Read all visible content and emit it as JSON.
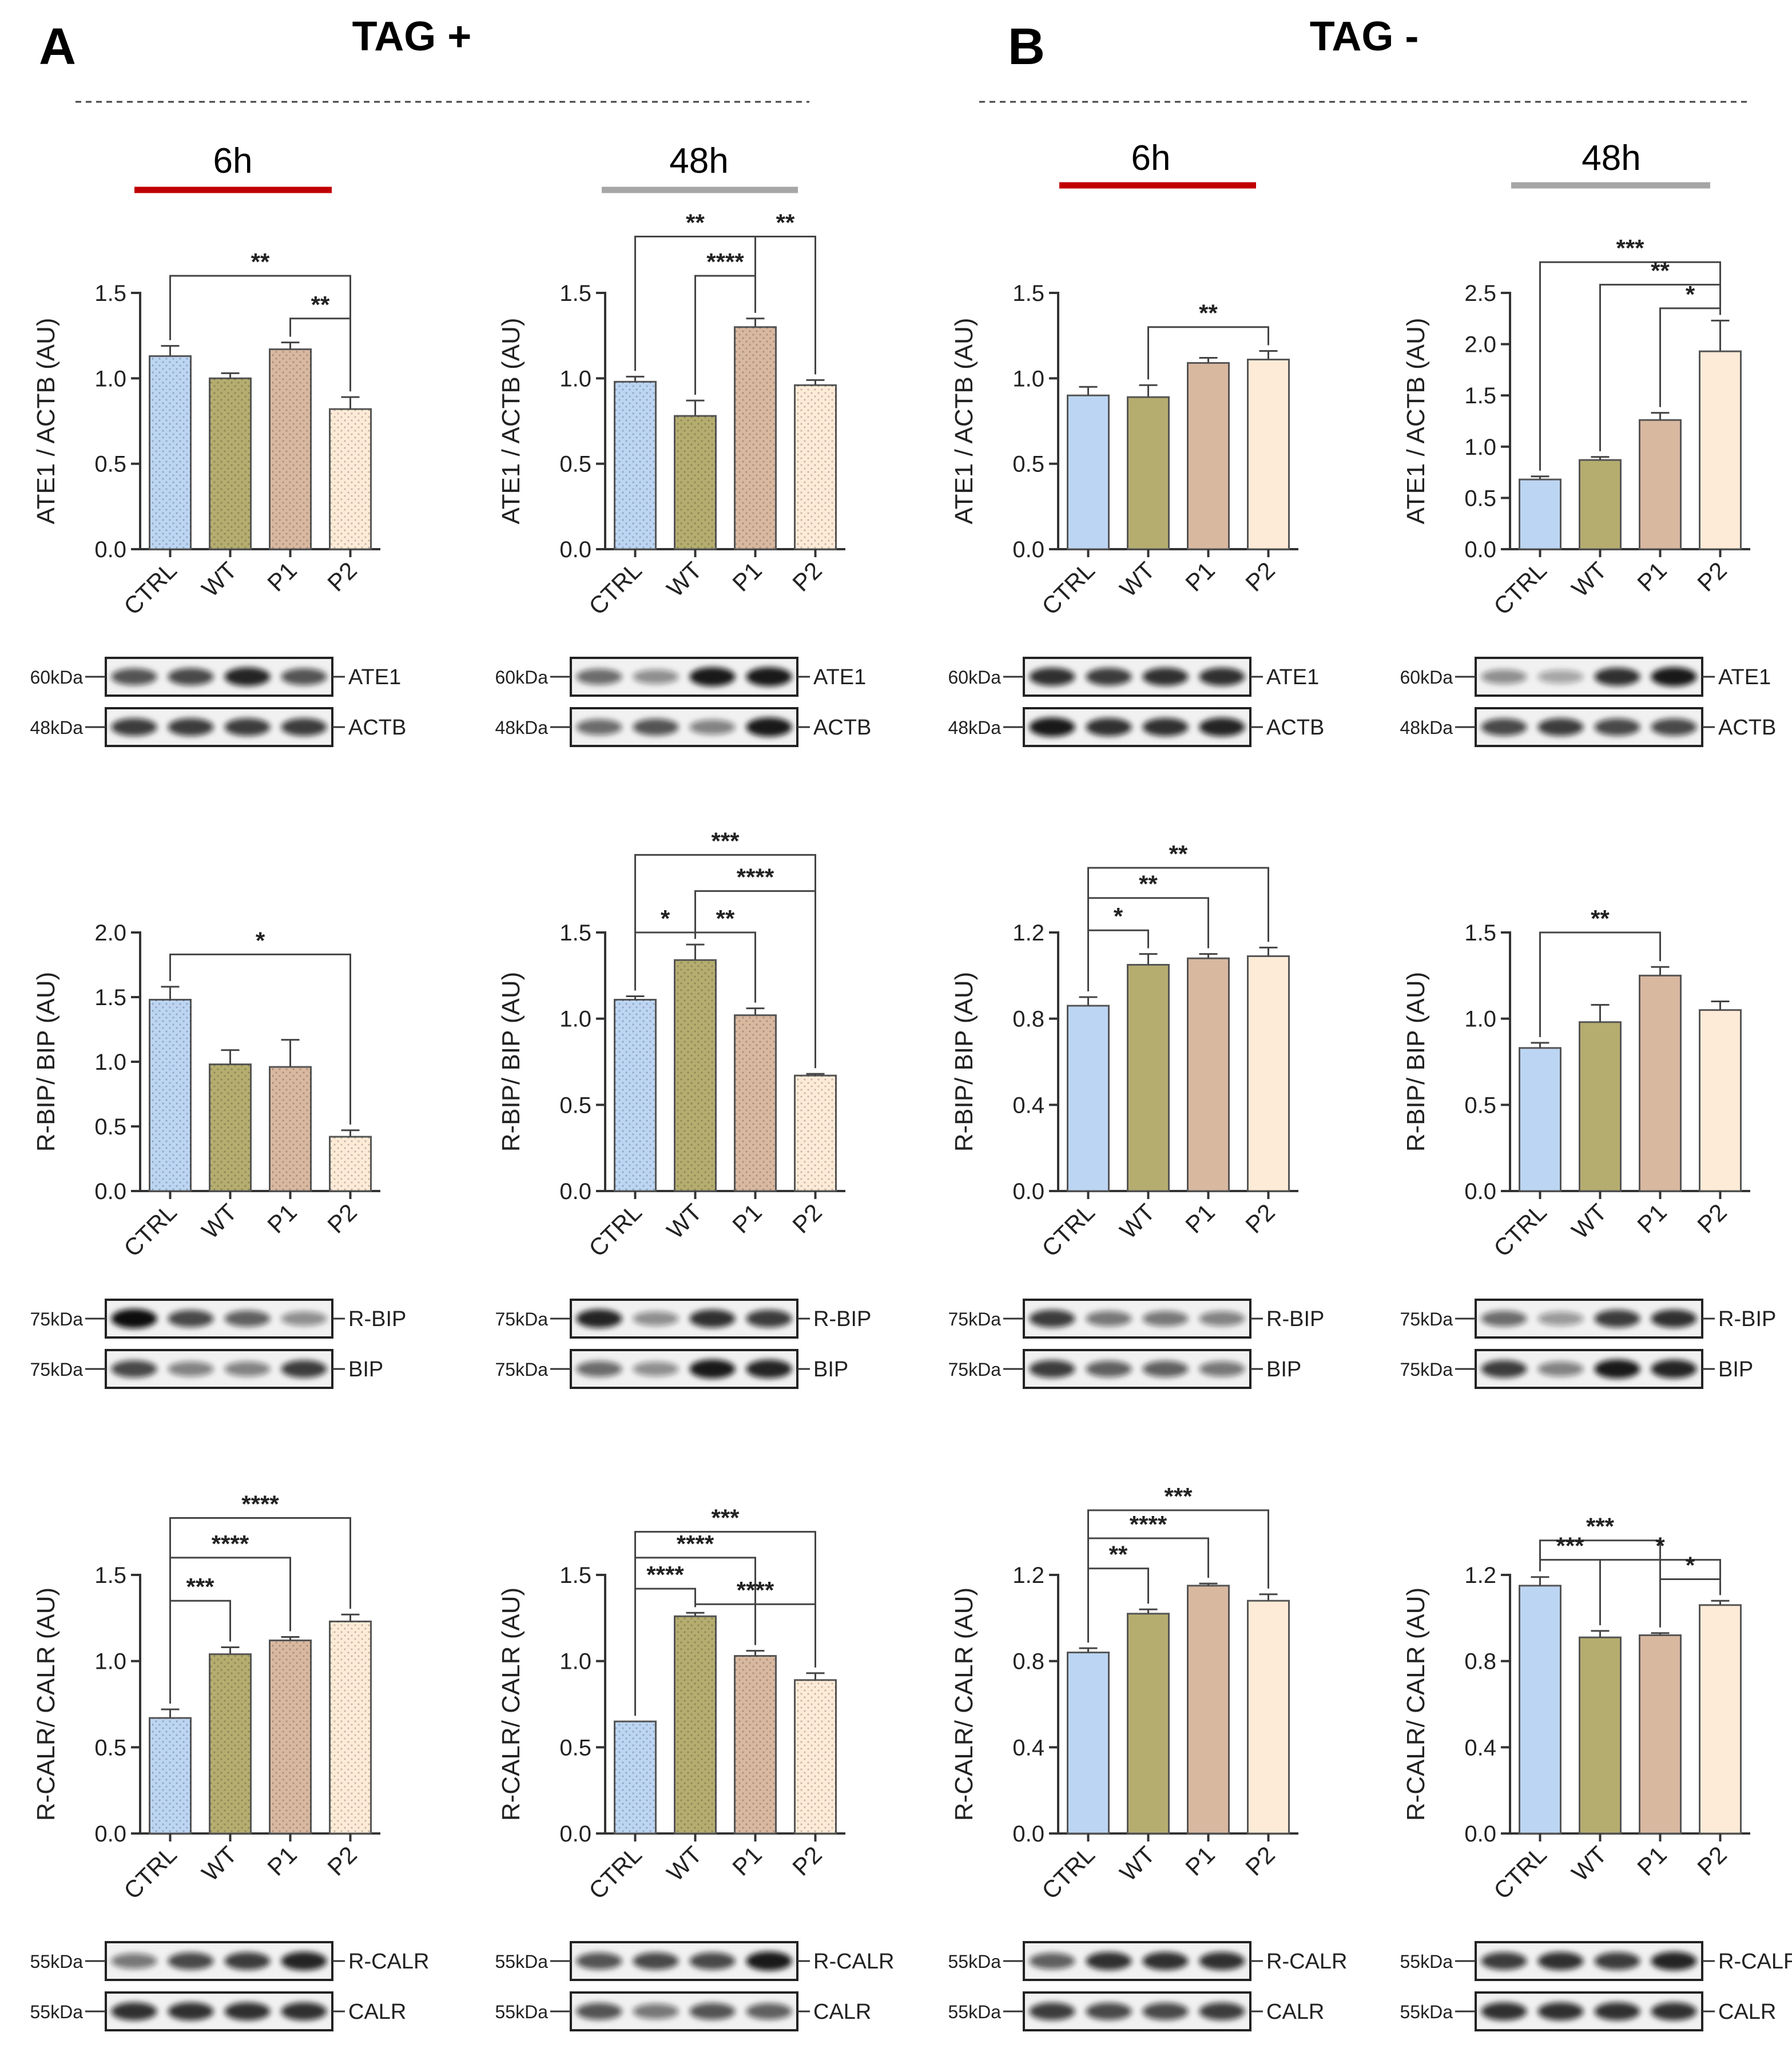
{
  "colors": {
    "CTRL": "#bcd5f3",
    "WT": "#b5ad6f",
    "P1": "#d9b8a0",
    "P2": "#fdebd7",
    "red_bar": "#c00000",
    "gray_bar": "#a6a6a6",
    "axis": "#333333"
  },
  "panels": [
    {
      "letter": "A",
      "title": "TAG +",
      "textured": true
    },
    {
      "letter": "B",
      "title": "TAG -",
      "textured": false
    }
  ],
  "timepoints": [
    "6h",
    "48h",
    "6h",
    "48h"
  ],
  "chart_data": [
    {
      "type": "bar",
      "panel": "A",
      "timepoint": "6h",
      "ylabel": "ATE1 / ACTB (AU)",
      "categories": [
        "CTRL",
        "WT",
        "P1",
        "P2"
      ],
      "values": [
        1.13,
        1.0,
        1.17,
        0.82
      ],
      "errors": [
        0.06,
        0.03,
        0.04,
        0.07
      ],
      "ylim": [
        0,
        1.5
      ],
      "yticks": [
        "0.0",
        "0.5",
        "1.0",
        "1.5"
      ],
      "sig": [
        {
          "a": 0,
          "b": 3,
          "label": "**",
          "y": 1.6
        },
        {
          "a": 2,
          "b": 3,
          "label": "**",
          "y": 1.35
        }
      ],
      "blot": {
        "rows": [
          {
            "kda": "60kDa",
            "label": "ATE1",
            "bands": [
              0.7,
              0.75,
              0.9,
              0.7
            ]
          },
          {
            "kda": "48kDa",
            "label": "ACTB",
            "bands": [
              0.8,
              0.8,
              0.8,
              0.8
            ]
          }
        ]
      }
    },
    {
      "type": "bar",
      "panel": "A",
      "timepoint": "48h",
      "ylabel": "ATE1 / ACTB (AU)",
      "categories": [
        "CTRL",
        "WT",
        "P1",
        "P2"
      ],
      "values": [
        0.98,
        0.78,
        1.3,
        0.96
      ],
      "errors": [
        0.03,
        0.09,
        0.05,
        0.03
      ],
      "ylim": [
        0,
        1.5
      ],
      "yticks": [
        "0.0",
        "0.5",
        "1.0",
        "1.5"
      ],
      "sig": [
        {
          "a": 0,
          "b": 2,
          "label": "**",
          "y": 1.83
        },
        {
          "a": 1,
          "b": 2,
          "label": "****",
          "y": 1.6
        },
        {
          "a": 2,
          "b": 3,
          "label": "**",
          "y": 1.83
        }
      ],
      "blot": {
        "rows": [
          {
            "kda": "60kDa",
            "label": "ATE1",
            "bands": [
              0.6,
              0.45,
              0.95,
              0.95
            ]
          },
          {
            "kda": "48kDa",
            "label": "ACTB",
            "bands": [
              0.6,
              0.7,
              0.5,
              0.95
            ]
          }
        ]
      }
    },
    {
      "type": "bar",
      "panel": "A",
      "timepoint": "6h",
      "ylabel": "R-BIP/ BIP (AU)",
      "categories": [
        "CTRL",
        "WT",
        "P1",
        "P2"
      ],
      "values": [
        1.48,
        0.98,
        0.96,
        0.42
      ],
      "errors": [
        0.1,
        0.11,
        0.21,
        0.05
      ],
      "ylim": [
        0,
        2.0
      ],
      "yticks": [
        "0.0",
        "0.5",
        "1.0",
        "1.5",
        "2.0"
      ],
      "sig": [
        {
          "a": 0,
          "b": 3,
          "label": "*",
          "y": 1.83
        }
      ],
      "blot": {
        "rows": [
          {
            "kda": "75kDa",
            "label": "R-BIP",
            "bands": [
              1.0,
              0.75,
              0.65,
              0.45
            ]
          },
          {
            "kda": "75kDa",
            "label": "BIP",
            "bands": [
              0.75,
              0.5,
              0.5,
              0.8
            ]
          }
        ]
      }
    },
    {
      "type": "bar",
      "panel": "A",
      "timepoint": "48h",
      "ylabel": "R-BIP/ BIP (AU)",
      "categories": [
        "CTRL",
        "WT",
        "P1",
        "P2"
      ],
      "values": [
        1.11,
        1.34,
        1.02,
        0.67
      ],
      "errors": [
        0.02,
        0.09,
        0.04,
        0.01
      ],
      "ylim": [
        0,
        1.5
      ],
      "yticks": [
        "0.0",
        "0.5",
        "1.0",
        "1.5"
      ],
      "sig": [
        {
          "a": 0,
          "b": 3,
          "label": "***",
          "y": 1.95
        },
        {
          "a": 1,
          "b": 3,
          "label": "****",
          "y": 1.74
        },
        {
          "a": 0,
          "b": 1,
          "label": "*",
          "y": 1.5
        },
        {
          "a": 1,
          "b": 2,
          "label": "**",
          "y": 1.5
        }
      ],
      "blot": {
        "rows": [
          {
            "kda": "75kDa",
            "label": "R-BIP",
            "bands": [
              0.9,
              0.45,
              0.85,
              0.8
            ]
          },
          {
            "kda": "75kDa",
            "label": "BIP",
            "bands": [
              0.6,
              0.45,
              0.95,
              0.9
            ]
          }
        ]
      }
    },
    {
      "type": "bar",
      "panel": "A",
      "timepoint": "6h",
      "ylabel": "R-CALR/ CALR (AU)",
      "categories": [
        "CTRL",
        "WT",
        "P1",
        "P2"
      ],
      "values": [
        0.67,
        1.04,
        1.12,
        1.23
      ],
      "errors": [
        0.05,
        0.04,
        0.02,
        0.04
      ],
      "ylim": [
        0,
        1.5
      ],
      "yticks": [
        "0.0",
        "0.5",
        "1.0",
        "1.5"
      ],
      "sig": [
        {
          "a": 0,
          "b": 3,
          "label": "****",
          "y": 1.83
        },
        {
          "a": 0,
          "b": 2,
          "label": "****",
          "y": 1.6
        },
        {
          "a": 0,
          "b": 1,
          "label": "***",
          "y": 1.35
        }
      ],
      "blot": {
        "rows": [
          {
            "kda": "55kDa",
            "label": "R-CALR",
            "bands": [
              0.55,
              0.75,
              0.8,
              0.9
            ]
          },
          {
            "kda": "55kDa",
            "label": "CALR",
            "bands": [
              0.85,
              0.85,
              0.85,
              0.85
            ]
          }
        ]
      }
    },
    {
      "type": "bar",
      "panel": "A",
      "timepoint": "48h",
      "ylabel": "R-CALR/ CALR (AU)",
      "categories": [
        "CTRL",
        "WT",
        "P1",
        "P2"
      ],
      "values": [
        0.65,
        1.26,
        1.03,
        0.89
      ],
      "errors": [
        0.0,
        0.02,
        0.03,
        0.04
      ],
      "ylim": [
        0,
        1.5
      ],
      "yticks": [
        "0.0",
        "0.5",
        "1.0",
        "1.5"
      ],
      "sig": [
        {
          "a": 0,
          "b": 3,
          "label": "***",
          "y": 1.75
        },
        {
          "a": 0,
          "b": 2,
          "label": "****",
          "y": 1.6
        },
        {
          "a": 0,
          "b": 1,
          "label": "****",
          "y": 1.42
        },
        {
          "a": 1,
          "b": 3,
          "label": "****",
          "y": 1.33
        }
      ],
      "blot": {
        "rows": [
          {
            "kda": "55kDa",
            "label": "R-CALR",
            "bands": [
              0.7,
              0.75,
              0.75,
              0.95
            ]
          },
          {
            "kda": "55kDa",
            "label": "CALR",
            "bands": [
              0.7,
              0.55,
              0.7,
              0.65
            ]
          }
        ]
      }
    },
    {
      "type": "bar",
      "panel": "B",
      "timepoint": "6h",
      "ylabel": "ATE1 / ACTB (AU)",
      "categories": [
        "CTRL",
        "WT",
        "P1",
        "P2"
      ],
      "values": [
        0.9,
        0.89,
        1.09,
        1.11
      ],
      "errors": [
        0.05,
        0.07,
        0.03,
        0.05
      ],
      "ylim": [
        0,
        1.5
      ],
      "yticks": [
        "0.0",
        "0.5",
        "1.0",
        "1.5"
      ],
      "sig": [
        {
          "a": 1,
          "b": 3,
          "label": "**",
          "y": 1.3
        }
      ],
      "blot": {
        "rows": [
          {
            "kda": "60kDa",
            "label": "ATE1",
            "bands": [
              0.85,
              0.8,
              0.85,
              0.85
            ]
          },
          {
            "kda": "48kDa",
            "label": "ACTB",
            "bands": [
              0.95,
              0.85,
              0.85,
              0.9
            ]
          }
        ]
      }
    },
    {
      "type": "bar",
      "panel": "B",
      "timepoint": "48h",
      "ylabel": "ATE1 / ACTB (AU)",
      "categories": [
        "CTRL",
        "WT",
        "P1",
        "P2"
      ],
      "values": [
        0.68,
        0.87,
        1.26,
        1.93
      ],
      "errors": [
        0.03,
        0.03,
        0.07,
        0.3
      ],
      "ylim": [
        0,
        2.5
      ],
      "yticks": [
        "0.0",
        "0.5",
        "1.0",
        "1.5",
        "2.0",
        "2.5"
      ],
      "sig": [
        {
          "a": 0,
          "b": 3,
          "label": "***",
          "y": 2.8
        },
        {
          "a": 1,
          "b": 3,
          "label": "**",
          "y": 2.58
        },
        {
          "a": 2,
          "b": 3,
          "label": "*",
          "y": 2.35
        }
      ],
      "blot": {
        "rows": [
          {
            "kda": "60kDa",
            "label": "ATE1",
            "bands": [
              0.45,
              0.35,
              0.85,
              0.95
            ]
          },
          {
            "kda": "48kDa",
            "label": "ACTB",
            "bands": [
              0.75,
              0.8,
              0.75,
              0.75
            ]
          }
        ]
      }
    },
    {
      "type": "bar",
      "panel": "B",
      "timepoint": "6h",
      "ylabel": "R-BIP/ BIP (AU)",
      "categories": [
        "CTRL",
        "WT",
        "P1",
        "P2"
      ],
      "values": [
        0.86,
        1.05,
        1.08,
        1.09
      ],
      "errors": [
        0.04,
        0.05,
        0.02,
        0.04
      ],
      "ylim": [
        0,
        1.2
      ],
      "yticks": [
        "0.0",
        "0.4",
        "0.8",
        "1.2"
      ],
      "sig": [
        {
          "a": 0,
          "b": 3,
          "label": "**",
          "y": 1.5
        },
        {
          "a": 0,
          "b": 2,
          "label": "**",
          "y": 1.36
        },
        {
          "a": 0,
          "b": 1,
          "label": "*",
          "y": 1.21
        }
      ],
      "blot": {
        "rows": [
          {
            "kda": "75kDa",
            "label": "R-BIP",
            "bands": [
              0.8,
              0.55,
              0.55,
              0.5
            ]
          },
          {
            "kda": "75kDa",
            "label": "BIP",
            "bands": [
              0.8,
              0.65,
              0.65,
              0.55
            ]
          }
        ]
      }
    },
    {
      "type": "bar",
      "panel": "B",
      "timepoint": "48h",
      "ylabel": "R-BIP/ BIP (AU)",
      "categories": [
        "CTRL",
        "WT",
        "P1",
        "P2"
      ],
      "values": [
        0.83,
        0.98,
        1.25,
        1.05
      ],
      "errors": [
        0.03,
        0.1,
        0.05,
        0.05
      ],
      "ylim": [
        0,
        1.5
      ],
      "yticks": [
        "0.0",
        "0.5",
        "1.0",
        "1.5"
      ],
      "sig": [
        {
          "a": 0,
          "b": 2,
          "label": "**",
          "y": 1.5
        }
      ],
      "blot": {
        "rows": [
          {
            "kda": "75kDa",
            "label": "R-BIP",
            "bands": [
              0.6,
              0.4,
              0.8,
              0.85
            ]
          },
          {
            "kda": "75kDa",
            "label": "BIP",
            "bands": [
              0.8,
              0.5,
              0.95,
              0.9
            ]
          }
        ]
      }
    },
    {
      "type": "bar",
      "panel": "B",
      "timepoint": "6h",
      "ylabel": "R-CALR/ CALR (AU)",
      "categories": [
        "CTRL",
        "WT",
        "P1",
        "P2"
      ],
      "values": [
        0.84,
        1.02,
        1.15,
        1.08
      ],
      "errors": [
        0.02,
        0.02,
        0.01,
        0.03
      ],
      "ylim": [
        0,
        1.2
      ],
      "yticks": [
        "0.0",
        "0.4",
        "0.8",
        "1.2"
      ],
      "sig": [
        {
          "a": 0,
          "b": 3,
          "label": "***",
          "y": 1.5
        },
        {
          "a": 0,
          "b": 2,
          "label": "****",
          "y": 1.37
        },
        {
          "a": 0,
          "b": 1,
          "label": "**",
          "y": 1.23
        }
      ],
      "blot": {
        "rows": [
          {
            "kda": "55kDa",
            "label": "R-CALR",
            "bands": [
              0.65,
              0.85,
              0.85,
              0.85
            ]
          },
          {
            "kda": "55kDa",
            "label": "CALR",
            "bands": [
              0.8,
              0.75,
              0.75,
              0.8
            ]
          }
        ]
      }
    },
    {
      "type": "bar",
      "panel": "B",
      "timepoint": "48h",
      "ylabel": "R-CALR/ CALR (AU)",
      "categories": [
        "CTRL",
        "WT",
        "P1",
        "P2"
      ],
      "values": [
        1.15,
        0.91,
        0.92,
        1.06
      ],
      "errors": [
        0.04,
        0.03,
        0.01,
        0.02
      ],
      "ylim": [
        0,
        1.2
      ],
      "yticks": [
        "0.0",
        "0.4",
        "0.8",
        "1.2"
      ],
      "sig": [
        {
          "a": 0,
          "b": 2,
          "label": "***",
          "y": 1.36
        },
        {
          "a": 0,
          "b": 1,
          "label": "***",
          "y": 1.27
        },
        {
          "a": 1,
          "b": 3,
          "label": "*",
          "y": 1.27
        },
        {
          "a": 2,
          "b": 3,
          "label": "*",
          "y": 1.18
        }
      ],
      "blot": {
        "rows": [
          {
            "kda": "55kDa",
            "label": "R-CALR",
            "bands": [
              0.8,
              0.85,
              0.8,
              0.9
            ]
          },
          {
            "kda": "55kDa",
            "label": "CALR",
            "bands": [
              0.85,
              0.85,
              0.85,
              0.85
            ]
          }
        ]
      }
    }
  ]
}
